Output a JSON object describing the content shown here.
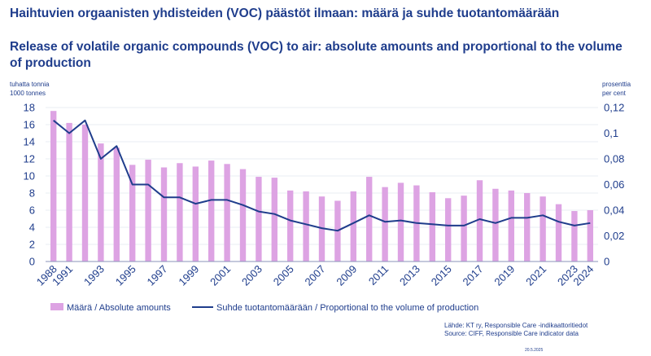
{
  "chart_data": {
    "type": "bar",
    "title": "Haihtuvien orgaanisten yhdisteiden (VOC) päästöt ilmaan: määrä ja suhde tuotantomäärään",
    "subtitle": "Release of volatile organic compounds (VOC) to air: absolute amounts and proportional to the volume of production",
    "ylabel_left": [
      "tuhatta tonnia",
      "1000 tonnes"
    ],
    "ylabel_right": [
      "prosenttia",
      "per cent"
    ],
    "ylim_left": [
      0,
      18
    ],
    "ylim_right": [
      0,
      0.12
    ],
    "yticks_left": [
      "0",
      "2",
      "4",
      "6",
      "8",
      "10",
      "12",
      "14",
      "16",
      "18"
    ],
    "yticks_right": [
      "0",
      "0,02",
      "0,04",
      "0,06",
      "0,08",
      "0,1",
      "0,12"
    ],
    "categories": [
      "1988",
      "1991",
      "1992",
      "1993",
      "1994",
      "1995",
      "1996",
      "1997",
      "1998",
      "1999",
      "2000",
      "2001",
      "2002",
      "2003",
      "2004",
      "2005",
      "2006",
      "2007",
      "2008",
      "2009",
      "2010",
      "2011",
      "2012",
      "2013",
      "2014",
      "2015",
      "2016",
      "2017",
      "2018",
      "2019",
      "2020",
      "2021",
      "2022",
      "2023",
      "2024"
    ],
    "x_tick_labels": [
      "1988",
      "1991",
      "",
      "1993",
      "",
      "1995",
      "",
      "1997",
      "",
      "1999",
      "",
      "2001",
      "",
      "2003",
      "",
      "2005",
      "",
      "2007",
      "",
      "2009",
      "",
      "2011",
      "",
      "2013",
      "",
      "2015",
      "",
      "2017",
      "",
      "2019",
      "",
      "2021",
      "",
      "2023",
      "2024"
    ],
    "series": [
      {
        "name": "Määrä / Absolute amounts",
        "type": "bar",
        "axis": "left",
        "color": "#dda3e3",
        "values": [
          17.6,
          16.2,
          16.0,
          13.8,
          13.3,
          11.3,
          11.9,
          11.0,
          11.5,
          11.1,
          11.8,
          11.4,
          10.8,
          9.9,
          9.8,
          8.3,
          8.2,
          7.6,
          7.1,
          8.2,
          9.9,
          8.7,
          9.2,
          8.9,
          8.1,
          7.4,
          7.7,
          9.5,
          8.5,
          8.3,
          8.0,
          7.6,
          6.7,
          5.9,
          6.0
        ]
      },
      {
        "name": "Suhde tuotantomäärään / Proportional to the volume of production",
        "type": "line",
        "axis": "right",
        "color": "#1f3d8c",
        "values": [
          0.11,
          0.1,
          0.11,
          0.08,
          0.09,
          0.06,
          0.06,
          0.05,
          0.05,
          0.045,
          0.048,
          0.048,
          0.044,
          0.039,
          0.037,
          0.032,
          0.029,
          0.026,
          0.024,
          0.03,
          0.036,
          0.031,
          0.032,
          0.03,
          0.029,
          0.028,
          0.028,
          0.033,
          0.03,
          0.034,
          0.034,
          0.036,
          0.031,
          0.028,
          0.03
        ]
      }
    ],
    "source": [
      "Lähde: KT ry, Responsible Care -indikaattoritiedot",
      "Source: CIFF, Responsible Care indicator data"
    ],
    "date": "20.5.2025"
  }
}
